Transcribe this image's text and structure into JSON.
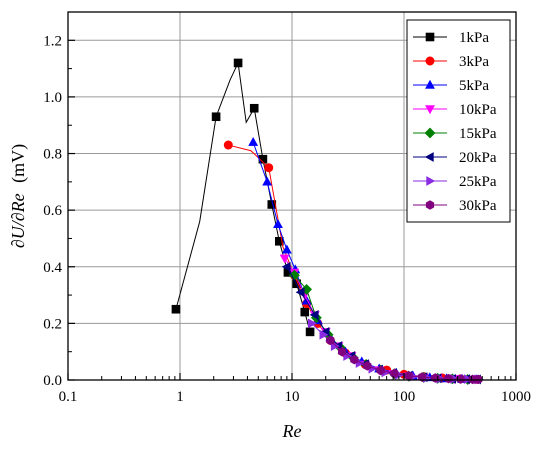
{
  "chart_data": {
    "type": "line",
    "xlabel": "Re",
    "ylabel_parts": [
      "∂U/∂Re",
      "(mV)"
    ],
    "x_scale": "log",
    "xlim": [
      0.1,
      1000
    ],
    "ylim": [
      0.0,
      1.3
    ],
    "x_ticks": [
      0.1,
      1,
      10,
      100,
      1000
    ],
    "x_tick_labels": [
      "0.1",
      "1",
      "10",
      "100",
      "1000"
    ],
    "y_ticks": [
      0.0,
      0.2,
      0.4,
      0.6,
      0.8,
      1.0,
      1.2
    ],
    "y_tick_labels": [
      "0.0",
      "0.2",
      "0.4",
      "0.6",
      "0.8",
      "1.0",
      "1.2"
    ],
    "grid": true,
    "legend_position": "top-right",
    "series": [
      {
        "name": "1kPa",
        "color": "#000000",
        "marker": "square",
        "x": [
          0.92,
          1.5,
          2.1,
          2.8,
          3.3,
          3.9,
          4.6,
          5.5,
          6.6,
          7.7,
          9.2,
          11.0,
          13.0,
          14.5
        ],
        "y": [
          0.25,
          0.56,
          0.93,
          1.06,
          1.12,
          0.91,
          0.96,
          0.78,
          0.62,
          0.49,
          0.38,
          0.34,
          0.24,
          0.17
        ],
        "marker_x": [
          0.92,
          2.1,
          3.3,
          4.6,
          5.5,
          6.6,
          7.7,
          9.2,
          11.0,
          13.0,
          14.5
        ],
        "marker_y": [
          0.25,
          0.93,
          1.12,
          0.96,
          0.78,
          0.62,
          0.49,
          0.38,
          0.34,
          0.24,
          0.17
        ]
      },
      {
        "name": "3kPa",
        "color": "#ff0000",
        "marker": "circle",
        "x": [
          2.7,
          4.3,
          6.2,
          8.3,
          10.5,
          13.5,
          17,
          22,
          30,
          45,
          70,
          100,
          150,
          220,
          320,
          440
        ],
        "y": [
          0.83,
          0.81,
          0.75,
          0.47,
          0.37,
          0.27,
          0.2,
          0.14,
          0.095,
          0.055,
          0.035,
          0.02,
          0.012,
          0.007,
          0.004,
          0.002
        ],
        "marker_x": [
          2.7,
          6.2,
          10.5,
          13.5,
          17,
          22,
          30,
          45,
          70,
          100,
          150,
          220,
          320,
          440
        ],
        "marker_y": [
          0.83,
          0.75,
          0.37,
          0.27,
          0.2,
          0.14,
          0.095,
          0.055,
          0.035,
          0.02,
          0.012,
          0.007,
          0.004,
          0.002
        ]
      },
      {
        "name": "5kPa",
        "color": "#0000ff",
        "marker": "triangle-up",
        "x": [
          4.5,
          6.0,
          7.5,
          9.0,
          10.7,
          13.5,
          17,
          22,
          30,
          42,
          60,
          85,
          120,
          170,
          240,
          330,
          440
        ],
        "y": [
          0.84,
          0.7,
          0.55,
          0.46,
          0.39,
          0.28,
          0.21,
          0.15,
          0.1,
          0.065,
          0.04,
          0.025,
          0.015,
          0.009,
          0.005,
          0.003,
          0.002
        ]
      },
      {
        "name": "10kPa",
        "color": "#ff00ff",
        "marker": "triangle-down",
        "x": [
          8.6,
          10.5,
          13,
          16,
          20,
          26,
          34,
          45,
          60,
          80,
          110,
          150,
          200,
          280,
          380
        ],
        "y": [
          0.43,
          0.38,
          0.3,
          0.23,
          0.17,
          0.12,
          0.085,
          0.055,
          0.035,
          0.022,
          0.014,
          0.009,
          0.006,
          0.004,
          0.002
        ]
      },
      {
        "name": "15kPa",
        "color": "#008000",
        "marker": "diamond",
        "x": [
          10.5,
          13.5,
          16.5,
          21,
          27,
          35,
          46,
          62,
          82,
          110,
          150,
          200,
          270,
          370
        ],
        "y": [
          0.37,
          0.32,
          0.22,
          0.16,
          0.115,
          0.08,
          0.055,
          0.035,
          0.022,
          0.014,
          0.009,
          0.006,
          0.004,
          0.002
        ]
      },
      {
        "name": "20kPa",
        "color": "#000080",
        "marker": "triangle-left",
        "x": [
          9.0,
          12,
          16,
          20,
          26,
          34,
          45,
          60,
          80,
          110,
          150,
          200,
          270,
          360,
          450
        ],
        "y": [
          0.4,
          0.31,
          0.23,
          0.17,
          0.12,
          0.085,
          0.056,
          0.037,
          0.024,
          0.015,
          0.01,
          0.006,
          0.004,
          0.003,
          0.002
        ]
      },
      {
        "name": "25kPa",
        "color": "#8a2be2",
        "marker": "triangle-right",
        "x": [
          15,
          19,
          24,
          31,
          40,
          52,
          68,
          90,
          120,
          160,
          210,
          280,
          370,
          460
        ],
        "y": [
          0.2,
          0.16,
          0.12,
          0.085,
          0.06,
          0.04,
          0.027,
          0.018,
          0.012,
          0.008,
          0.005,
          0.004,
          0.003,
          0.002
        ]
      },
      {
        "name": "30kPa",
        "color": "#800080",
        "marker": "hexagon",
        "x": [
          22,
          28,
          36,
          47,
          62,
          82,
          110,
          145,
          190,
          250,
          320,
          410,
          460
        ],
        "y": [
          0.14,
          0.1,
          0.072,
          0.05,
          0.034,
          0.023,
          0.015,
          0.01,
          0.007,
          0.005,
          0.003,
          0.002,
          0.002
        ]
      }
    ]
  }
}
